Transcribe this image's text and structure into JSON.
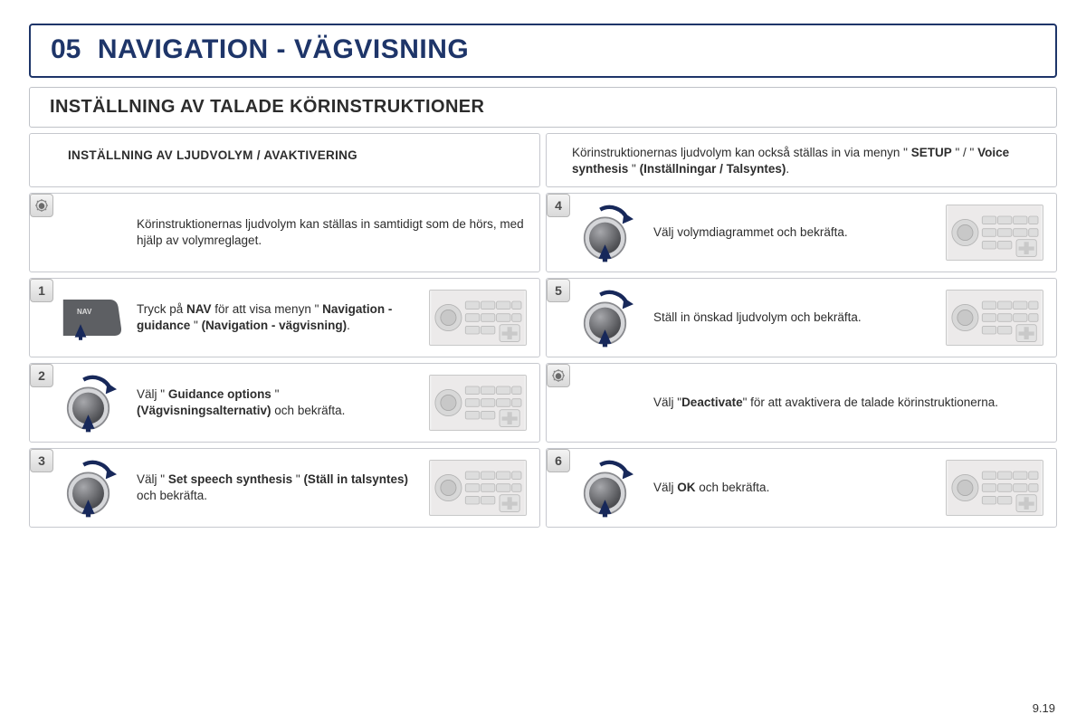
{
  "header": {
    "section_number": "05",
    "title": "NAVIGATION - VÄGVISNING"
  },
  "subtitle": "INSTÄLLNING AV TALADE KÖRINSTRUKTIONER",
  "top_row": {
    "left_heading": "INSTÄLLNING AV LJUDVOLYM / AVAKTIVERING",
    "right_html": "Körinstruktionernas ljudvolym kan också ställas in via menyn \" <b>SETUP</b> \" / \" <b>Voice synthesis</b> \" <b>(Inställningar / Talsyntes)</b>."
  },
  "left_col": [
    {
      "badge": "tip",
      "icon": "none",
      "html": "Körinstruktionernas ljudvolym kan ställas in samtidigt som de hörs, med hjälp av volymreglaget.",
      "thumb": false
    },
    {
      "badge": "1",
      "icon": "nav",
      "html": "Tryck på <b>NAV</b> för att visa menyn \" <b>Navigation - guidance</b> \" <b>(Navigation - vägvisning)</b>.",
      "thumb": true
    },
    {
      "badge": "2",
      "icon": "knob",
      "html": "Välj \" <b>Guidance options</b> \" <b>(Vägvisningsalternativ)</b> och bekräfta.",
      "thumb": true
    },
    {
      "badge": "3",
      "icon": "knob",
      "html": "Välj \" <b>Set speech synthesis</b> \" <b>(Ställ in talsyntes)</b> och bekräfta.",
      "thumb": true
    }
  ],
  "right_col": [
    {
      "badge": "4",
      "icon": "knob",
      "html": "Välj volymdiagrammet och bekräfta.",
      "thumb": true
    },
    {
      "badge": "5",
      "icon": "knob",
      "html": "Ställ in önskad ljudvolym och bekräfta.",
      "thumb": true
    },
    {
      "badge": "tip",
      "icon": "none",
      "html": "Välj \"<b>Deactivate</b>\" för att avaktivera de talade körinstruktionerna.",
      "thumb": false
    },
    {
      "badge": "6",
      "icon": "knob",
      "html": "Välj <b>OK</b> och bekräfta.",
      "thumb": true
    }
  ],
  "page_number": "9.19",
  "colors": {
    "brand_navy": "#1e3569",
    "arrow_navy": "#17285a",
    "knob_grey": "#6c6e72"
  }
}
